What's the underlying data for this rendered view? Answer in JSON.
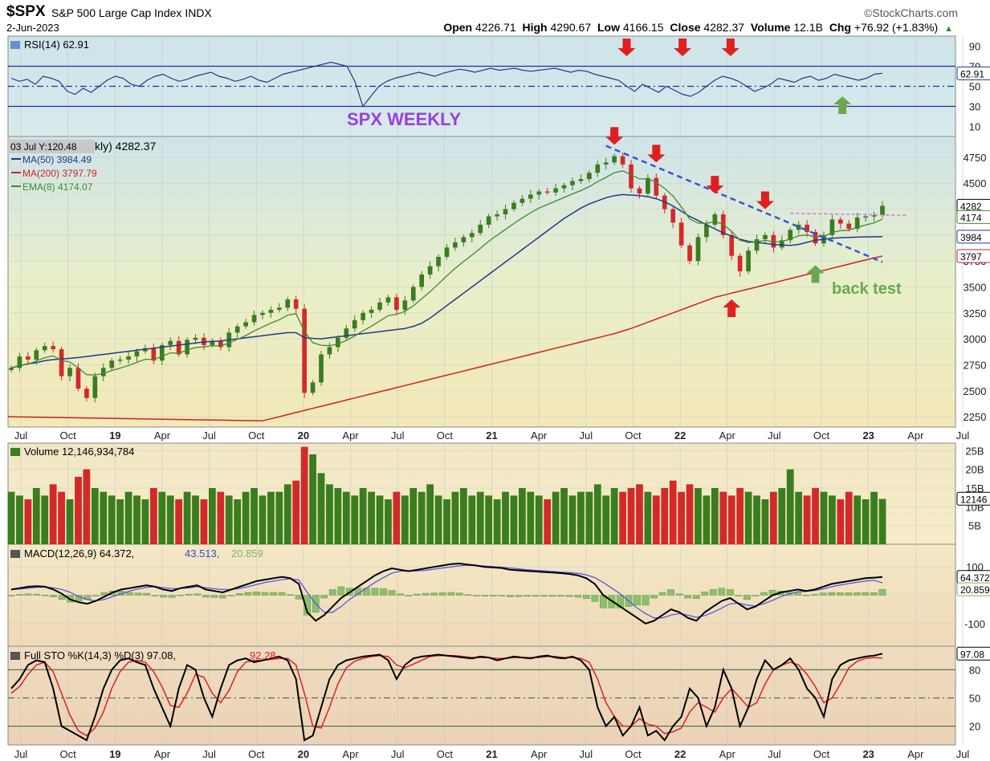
{
  "header": {
    "symbol": "$SPX",
    "name": "S&P 500 Large Cap Index",
    "exchange": "INDX",
    "watermark": "©StockCharts.com",
    "date": "2-Jun-2023",
    "open_label": "Open",
    "open": "4226.71",
    "high_label": "High",
    "high": "4290.67",
    "low_label": "Low",
    "low": "4166.15",
    "close_label": "Close",
    "close": "4282.37",
    "volume_label": "Volume",
    "volume": "12.1B",
    "chg_label": "Chg",
    "chg": "+76.92 (+1.83%)"
  },
  "colors": {
    "up": "#3a7d1e",
    "down": "#d22a2a",
    "ma50": "#1f3a8f",
    "ma200": "#cc2222",
    "ema8": "#3c8c2c",
    "annotation_arrow": "#e02020",
    "support_arrow": "#6aa84f",
    "title_text": "#9b3fe0",
    "trendline": "#3355dd",
    "resistance": "#e070e0"
  },
  "chart_data": [
    {
      "type": "line",
      "panel": "rsi",
      "legend": "RSI(14) 62.91",
      "value": 62.91,
      "ylim": [
        0,
        100
      ],
      "ticks": [
        90,
        70,
        50,
        30,
        10
      ],
      "tick_labels": [
        "90",
        "70",
        "50",
        "30",
        "10"
      ],
      "levels": [
        70,
        50,
        30
      ],
      "last_label": "62.91",
      "series": [
        {
          "values": [
            58,
            55,
            57,
            52,
            60,
            58,
            55,
            45,
            42,
            48,
            44,
            50,
            56,
            60,
            58,
            52,
            50,
            56,
            60,
            62,
            58,
            55,
            57,
            60,
            62,
            64,
            60,
            58,
            55,
            57,
            60,
            56,
            54,
            58,
            62,
            64,
            66,
            68,
            70,
            72,
            74,
            72,
            70,
            55,
            30,
            40,
            50,
            55,
            58,
            60,
            62,
            64,
            62,
            60,
            63,
            65,
            67,
            66,
            64,
            66,
            68,
            66,
            67,
            68,
            66,
            65,
            66,
            67,
            68,
            66,
            64,
            66,
            65,
            62,
            60,
            58,
            56,
            50,
            45,
            52,
            48,
            44,
            50,
            46,
            42,
            40,
            44,
            50,
            56,
            60,
            58,
            55,
            50,
            45,
            48,
            52,
            58,
            56,
            54,
            58,
            60,
            56,
            58,
            62,
            60,
            58,
            56,
            58,
            62,
            63
          ]
        }
      ]
    },
    {
      "type": "candlestick",
      "panel": "price",
      "title": "SPX WEEKLY",
      "legend_date": "03 Jul Y:120.48",
      "legend_close": "kly) 4282.37",
      "legends": [
        "MA(50) 3984.49",
        "MA(200) 3797.79",
        "EMA(8) 4174.07"
      ],
      "ylim": [
        2150,
        4950
      ],
      "ticks": [
        4750,
        4500,
        4250,
        4000,
        3750,
        3500,
        3250,
        3000,
        2750,
        2500,
        2250
      ],
      "tick_labels": [
        "4750",
        "4500",
        "4250",
        "4000",
        "3750",
        "3500",
        "3250",
        "3000",
        "2750",
        "2500",
        "2250"
      ],
      "x_ticks": [
        0,
        3,
        6,
        9,
        12,
        15,
        18,
        21,
        24,
        27,
        30,
        33,
        36,
        39,
        42,
        45,
        48,
        51,
        54,
        57
      ],
      "x_labels": [
        "Jul",
        "Oct",
        "19",
        "Apr",
        "Jul",
        "Oct",
        "20",
        "Apr",
        "Jul",
        "Oct",
        "21",
        "Apr",
        "Jul",
        "Oct",
        "22",
        "Apr",
        "Jul",
        "Oct",
        "23",
        "Apr"
      ],
      "x_labels_extra": [
        "Jul",
        "Oct"
      ],
      "closes": [
        2720,
        2830,
        2800,
        2890,
        2930,
        2900,
        2640,
        2720,
        2520,
        2430,
        2640,
        2720,
        2790,
        2800,
        2830,
        2880,
        2910,
        2790,
        2940,
        2980,
        2850,
        2990,
        3010,
        2940,
        2980,
        2920,
        3060,
        3120,
        3160,
        3230,
        3250,
        3280,
        3300,
        3380,
        3290,
        2480,
        2580,
        2850,
        2920,
        3010,
        3100,
        3180,
        3250,
        3280,
        3350,
        3400,
        3280,
        3370,
        3500,
        3620,
        3700,
        3790,
        3880,
        3930,
        3980,
        4020,
        4100,
        4180,
        4200,
        4250,
        4310,
        4350,
        4390,
        4420,
        4410,
        4450,
        4480,
        4520,
        4540,
        4600,
        4680,
        4700,
        4760,
        4680,
        4450,
        4400,
        4550,
        4380,
        4250,
        4120,
        3900,
        3750,
        3980,
        4100,
        4200,
        4000,
        3800,
        3650,
        3850,
        3960,
        4000,
        3880,
        3950,
        4050,
        4100,
        4030,
        3920,
        4000,
        4150,
        4110,
        4060,
        4170,
        4180,
        4190,
        4282
      ],
      "ma50": [
        2720,
        2740,
        2760,
        2770,
        2790,
        2800,
        2805,
        2812,
        2820,
        2830,
        2840,
        2850,
        2860,
        2870,
        2880,
        2890,
        2900,
        2910,
        2920,
        2930,
        2940,
        2950,
        2960,
        2970,
        2975,
        2980,
        2990,
        3000,
        3010,
        3020,
        3030,
        3040,
        3050,
        3060,
        3060,
        3010,
        3005,
        3000,
        3010,
        3020,
        3030,
        3040,
        3050,
        3060,
        3070,
        3080,
        3090,
        3100,
        3120,
        3150,
        3200,
        3260,
        3320,
        3380,
        3440,
        3500,
        3560,
        3620,
        3680,
        3740,
        3800,
        3860,
        3920,
        3980,
        4040,
        4100,
        4160,
        4210,
        4260,
        4300,
        4330,
        4360,
        4380,
        4390,
        4385,
        4380,
        4370,
        4350,
        4320,
        4280,
        4230,
        4180,
        4140,
        4100,
        4060,
        4020,
        3990,
        3960,
        3940,
        3930,
        3920,
        3910,
        3905,
        3900,
        3910,
        3930,
        3950,
        3960,
        3970,
        3975,
        3978,
        3980,
        3982,
        3983,
        3984.49
      ],
      "ma200": [
        2210,
        2230,
        2250,
        2270,
        2290,
        2310,
        2330,
        2350,
        2370,
        2390,
        2410,
        2430,
        2450,
        2470,
        2490,
        2510,
        2530,
        2550,
        2570,
        2590,
        2610,
        2630,
        2650,
        2670,
        2690,
        2710,
        2730,
        2750,
        2770,
        2790,
        2810,
        2830,
        2850,
        2870,
        2890,
        2910,
        2930,
        2950,
        2970,
        2990,
        3010,
        3030,
        3050,
        3075,
        3100,
        3130,
        3160,
        3190,
        3220,
        3250,
        3280,
        3310,
        3340,
        3370,
        3400,
        3420,
        3440,
        3460,
        3480,
        3500,
        3520,
        3540,
        3560,
        3580,
        3600,
        3620,
        3640,
        3660,
        3680,
        3700,
        3720,
        3740,
        3760,
        3780,
        3797.79
      ],
      "annotations": [
        "back test"
      ]
    },
    {
      "type": "bar",
      "panel": "volume",
      "legend": "Volume 12,146,934,784",
      "ylim": [
        0,
        27
      ],
      "ticks": [
        25,
        20,
        15,
        10,
        5
      ],
      "tick_labels": [
        "25B",
        "20B",
        "15B",
        "10B",
        "5B"
      ],
      "last_label": "12146",
      "values": [
        14,
        13,
        12,
        15,
        13,
        16,
        14,
        12,
        18,
        20,
        15,
        14,
        13,
        12,
        14,
        13,
        12,
        15,
        14,
        13,
        12,
        14,
        13,
        12,
        15,
        14,
        13,
        12,
        14,
        15,
        13,
        14,
        14,
        16,
        17,
        26,
        24,
        19,
        16,
        15,
        14,
        13,
        15,
        14,
        13,
        12,
        14,
        13,
        15,
        14,
        16,
        13,
        12,
        14,
        15,
        13,
        14,
        13,
        12,
        14,
        13,
        15,
        14,
        13,
        12,
        14,
        15,
        13,
        14,
        14,
        16,
        13,
        15,
        14,
        15,
        16,
        14,
        13,
        15,
        17,
        14,
        16,
        15,
        13,
        15,
        14,
        13,
        15,
        14,
        13,
        12,
        14,
        15,
        20,
        14,
        13,
        15,
        14,
        13,
        12,
        14,
        13,
        12,
        14,
        12.1
      ]
    },
    {
      "type": "line",
      "panel": "macd",
      "legend": "MACD(12,26,9) 64.372, 43.513, 20.859",
      "legend_parts": [
        "MACD(12,26,9) 64.372,",
        "43.513,",
        "20.859"
      ],
      "ylim": [
        -180,
        180
      ],
      "ticks": [
        100,
        0,
        -100
      ],
      "tick_labels": [
        "100",
        "",
        "-100"
      ],
      "last_labels": [
        "64.372",
        "20.859"
      ],
      "macd": [
        20,
        25,
        30,
        32,
        30,
        20,
        5,
        -15,
        -25,
        -30,
        -20,
        -5,
        10,
        20,
        25,
        30,
        35,
        30,
        20,
        15,
        25,
        30,
        35,
        20,
        15,
        10,
        20,
        30,
        40,
        50,
        55,
        60,
        65,
        60,
        40,
        -60,
        -90,
        -70,
        -40,
        -10,
        10,
        30,
        50,
        70,
        85,
        95,
        90,
        85,
        90,
        95,
        100,
        105,
        110,
        112,
        108,
        105,
        100,
        98,
        96,
        90,
        88,
        86,
        84,
        82,
        80,
        78,
        75,
        70,
        60,
        40,
        0,
        -20,
        -40,
        -60,
        -80,
        -100,
        -90,
        -70,
        -50,
        -60,
        -80,
        -90,
        -60,
        -40,
        -20,
        -10,
        -30,
        -50,
        -40,
        -20,
        0,
        10,
        15,
        20,
        15,
        20,
        30,
        40,
        45,
        50,
        55,
        60,
        62,
        64.372
      ],
      "signal": [
        20,
        22,
        25,
        28,
        29,
        26,
        20,
        10,
        -5,
        -15,
        -20,
        -15,
        -5,
        5,
        15,
        22,
        28,
        30,
        27,
        23,
        24,
        26,
        30,
        27,
        23,
        20,
        20,
        24,
        30,
        38,
        45,
        50,
        55,
        58,
        54,
        10,
        -30,
        -60,
        -60,
        -40,
        -15,
        5,
        25,
        45,
        62,
        78,
        85,
        85,
        86,
        88,
        92,
        96,
        100,
        104,
        106,
        105,
        103,
        101,
        99,
        96,
        93,
        90,
        88,
        86,
        84,
        82,
        80,
        77,
        72,
        62,
        45,
        25,
        5,
        -20,
        -45,
        -65,
        -80,
        -80,
        -70,
        -65,
        -70,
        -78,
        -72,
        -60,
        -45,
        -30,
        -28,
        -35,
        -38,
        -30,
        -18,
        -5,
        5,
        12,
        14,
        17,
        22,
        30,
        36,
        41,
        46,
        50,
        53,
        43.513
      ],
      "hist": [
        0,
        3,
        5,
        4,
        1,
        -6,
        -15,
        -25,
        -20,
        -15,
        0,
        10,
        15,
        15,
        10,
        8,
        7,
        0,
        -7,
        -8,
        1,
        4,
        5,
        -7,
        -8,
        -10,
        0,
        6,
        10,
        12,
        10,
        10,
        10,
        2,
        -14,
        -70,
        -60,
        -10,
        20,
        30,
        25,
        25,
        25,
        25,
        23,
        17,
        5,
        0,
        4,
        7,
        8,
        9,
        10,
        8,
        2,
        0,
        -3,
        -3,
        -3,
        -6,
        -5,
        -4,
        -4,
        -4,
        -4,
        -4,
        -5,
        -7,
        -12,
        -22,
        -45,
        -45,
        -45,
        -40,
        -35,
        -35,
        -10,
        10,
        20,
        5,
        -10,
        -12,
        12,
        20,
        25,
        20,
        -2,
        -15,
        -2,
        10,
        18,
        15,
        10,
        8,
        1,
        3,
        8,
        10,
        9,
        9,
        9,
        10,
        9,
        20.859
      ]
    },
    {
      "type": "line",
      "panel": "stochastic",
      "legend": "Full STO %K(14,3) %D(3) 97.08, 92.28",
      "legend_parts": [
        "Full STO %K(14,3) %D(3) 97.08,",
        "92.28"
      ],
      "ylim": [
        0,
        105
      ],
      "ticks": [
        80,
        50,
        20
      ],
      "tick_labels": [
        "80",
        "50",
        "20"
      ],
      "levels": [
        80,
        50,
        20
      ],
      "last_label": "97.08",
      "k": [
        60,
        70,
        85,
        90,
        88,
        60,
        20,
        15,
        10,
        5,
        30,
        60,
        80,
        90,
        92,
        88,
        85,
        60,
        40,
        20,
        60,
        85,
        80,
        50,
        30,
        60,
        85,
        90,
        92,
        88,
        90,
        92,
        94,
        90,
        70,
        5,
        10,
        40,
        70,
        85,
        90,
        92,
        94,
        95,
        96,
        90,
        70,
        85,
        92,
        94,
        95,
        96,
        95,
        94,
        93,
        92,
        94,
        93,
        90,
        92,
        94,
        93,
        92,
        94,
        95,
        93,
        92,
        94,
        90,
        80,
        40,
        20,
        30,
        10,
        20,
        40,
        10,
        15,
        5,
        20,
        30,
        60,
        50,
        20,
        40,
        80,
        60,
        20,
        40,
        70,
        90,
        80,
        85,
        92,
        80,
        60,
        50,
        30,
        70,
        85,
        90,
        92,
        94,
        95,
        97.08
      ],
      "d": [
        55,
        62,
        75,
        85,
        88,
        78,
        55,
        32,
        15,
        10,
        18,
        35,
        60,
        78,
        88,
        90,
        88,
        78,
        62,
        42,
        40,
        55,
        75,
        72,
        55,
        45,
        58,
        78,
        88,
        90,
        90,
        91,
        92,
        92,
        85,
        55,
        20,
        18,
        40,
        65,
        82,
        89,
        92,
        94,
        95,
        94,
        85,
        82,
        86,
        90,
        94,
        95,
        95,
        95,
        94,
        93,
        93,
        93,
        92,
        92,
        93,
        93,
        93,
        93,
        94,
        94,
        93,
        93,
        92,
        88,
        70,
        45,
        30,
        20,
        20,
        28,
        22,
        20,
        12,
        14,
        18,
        35,
        45,
        40,
        35,
        50,
        60,
        50,
        40,
        45,
        65,
        80,
        85,
        88,
        85,
        75,
        62,
        45,
        50,
        65,
        82,
        89,
        92,
        93,
        92.28
      ]
    }
  ]
}
